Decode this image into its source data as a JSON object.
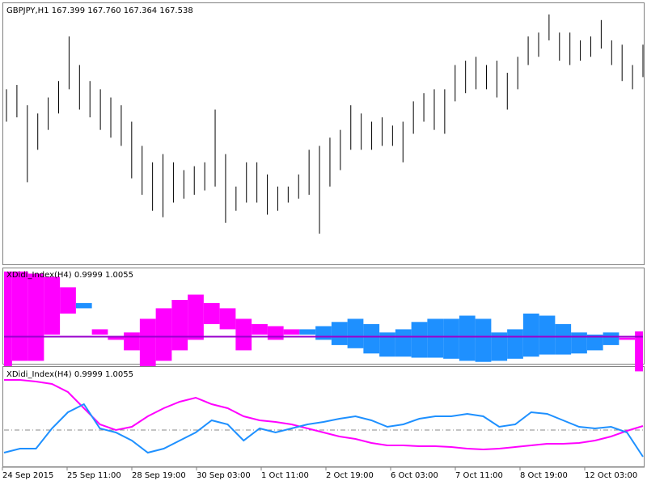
{
  "chart_data": [
    {
      "type": "ohlc",
      "title": "GBPJPY,H1  167.399 167.760 167.364 167.538",
      "color": "#000000",
      "ylim": [
        163.2,
        169.2
      ],
      "high": [
        167.23,
        167.33,
        166.86,
        166.67,
        167.04,
        167.42,
        168.45,
        167.79,
        167.42,
        167.23,
        167.04,
        166.86,
        166.48,
        165.92,
        165.54,
        165.73,
        165.54,
        165.36,
        165.45,
        165.54,
        166.76,
        165.73,
        164.98,
        165.54,
        165.54,
        165.26,
        164.98,
        164.98,
        165.26,
        165.83,
        165.92,
        166.11,
        166.29,
        166.86,
        166.67,
        166.48,
        166.58,
        166.39,
        166.48,
        166.95,
        167.14,
        167.23,
        167.23,
        167.79,
        167.89,
        167.98,
        167.79,
        167.89,
        167.61,
        167.98,
        168.45,
        168.54,
        168.96,
        168.54,
        168.54,
        168.36,
        168.45,
        168.83,
        168.36,
        168.26,
        167.79,
        168.26
      ],
      "low": [
        166.48,
        166.58,
        165.08,
        165.83,
        166.29,
        166.67,
        167.23,
        166.76,
        166.58,
        166.29,
        166.11,
        165.92,
        165.17,
        164.79,
        164.42,
        164.27,
        164.61,
        164.7,
        164.79,
        164.89,
        164.98,
        164.14,
        164.42,
        164.61,
        164.61,
        164.33,
        164.42,
        164.61,
        164.7,
        164.79,
        163.89,
        164.98,
        165.36,
        165.83,
        165.83,
        165.83,
        165.92,
        165.92,
        165.54,
        166.2,
        166.48,
        166.29,
        166.2,
        166.95,
        167.14,
        167.23,
        167.23,
        167.04,
        166.76,
        167.23,
        167.79,
        167.98,
        168.36,
        167.89,
        167.79,
        167.89,
        167.98,
        168.17,
        167.79,
        167.42,
        167.23,
        167.51
      ]
    },
    {
      "type": "cloud",
      "title": "XDidi_Index(H4) 0.9999 1.0055",
      "ylim": [
        0.975,
        1.065
      ],
      "level": 1,
      "level_color": "#9900cc"
    },
    {
      "type": "line",
      "title": "XDidi_Index(H4) 0.9999 1.0055",
      "ylim": [
        0.955,
        1.077
      ],
      "level": 1,
      "level_color": "#888888",
      "x_labels": [
        "24 Sep 2015",
        "25 Sep 11:00",
        "28 Sep 19:00",
        "30 Sep 03:00",
        "1 Oct 11:00",
        "2 Oct 19:00",
        "6 Oct 03:00",
        "7 Oct 11:00",
        "8 Oct 19:00",
        "12 Oct 03:00"
      ],
      "series": [
        {
          "color": "#ff00ff",
          "values": [
            1.062,
            1.062,
            1.06,
            1.057,
            1.047,
            1.027,
            1.007,
            1.0,
            1.004,
            1.017,
            1.027,
            1.035,
            1.04,
            1.032,
            1.027,
            1.017,
            1.012,
            1.01,
            1.007,
            1.002,
            0.997,
            0.992,
            0.989,
            0.984,
            0.981,
            0.981,
            0.98,
            0.98,
            0.979,
            0.977,
            0.976,
            0.977,
            0.979,
            0.981,
            0.983,
            0.983,
            0.984,
            0.987,
            0.992,
            0.999,
            1.005
          ]
        },
        {
          "color": "#1e90ff",
          "values": [
            0.972,
            0.977,
            0.977,
            1.002,
            1.022,
            1.032,
            1.002,
            0.997,
            0.987,
            0.972,
            0.977,
            0.987,
            0.997,
            1.012,
            1.007,
            0.987,
            1.002,
            0.997,
            1.002,
            1.007,
            1.01,
            1.014,
            1.017,
            1.012,
            1.004,
            1.007,
            1.014,
            1.017,
            1.017,
            1.02,
            1.017,
            1.004,
            1.007,
            1.022,
            1.02,
            1.012,
            1.004,
            1.002,
            1.004,
            0.997,
            0.967
          ]
        }
      ]
    }
  ]
}
